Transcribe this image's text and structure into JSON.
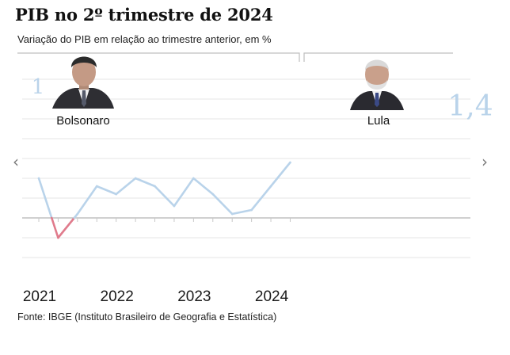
{
  "header": {
    "title": "PIB no 2º trimestre de 2024",
    "subtitle": "Variação do PIB em relação ao trimestre anterior, em %"
  },
  "footer": {
    "source": "Fonte: IBGE (Instituto Brasileiro de Geografia e Estatística)"
  },
  "nav": {
    "prev": "‹",
    "next": "›"
  },
  "presidents": [
    {
      "name": "Bolsonaro",
      "photo": "bolsonaro-photo"
    },
    {
      "name": "Lula",
      "photo": "lula-photo"
    }
  ],
  "colors": {
    "positive": "#b9d3ea",
    "negative": "#e07b8c",
    "grid": "#e6e6e6"
  },
  "chart_data": {
    "type": "line",
    "title": "PIB no 2º trimestre de 2024",
    "subtitle": "Variação do PIB em relação ao trimestre anterior, em %",
    "x": [
      "2021-Q1",
      "2021-Q2",
      "2021-Q3",
      "2021-Q4",
      "2022-Q1",
      "2022-Q2",
      "2022-Q3",
      "2022-Q4",
      "2023-Q1",
      "2023-Q2",
      "2023-Q3",
      "2023-Q4",
      "2024-Q1",
      "2024-Q2"
    ],
    "values": [
      1.0,
      -0.5,
      0.1,
      0.8,
      0.6,
      1.0,
      0.8,
      0.3,
      1.0,
      0.6,
      0.1,
      0.2,
      0.8,
      1.4
    ],
    "xticks": [
      "2021",
      "2022",
      "2023",
      "2024"
    ],
    "start_label": "1",
    "end_label": "1,4",
    "periods": [
      {
        "name": "Bolsonaro",
        "from": "2021-Q1",
        "to": "2022-Q4"
      },
      {
        "name": "Lula",
        "from": "2023-Q1",
        "to": "2024-Q2"
      }
    ],
    "ylim": [
      -0.6,
      1.4
    ],
    "grid": true
  }
}
